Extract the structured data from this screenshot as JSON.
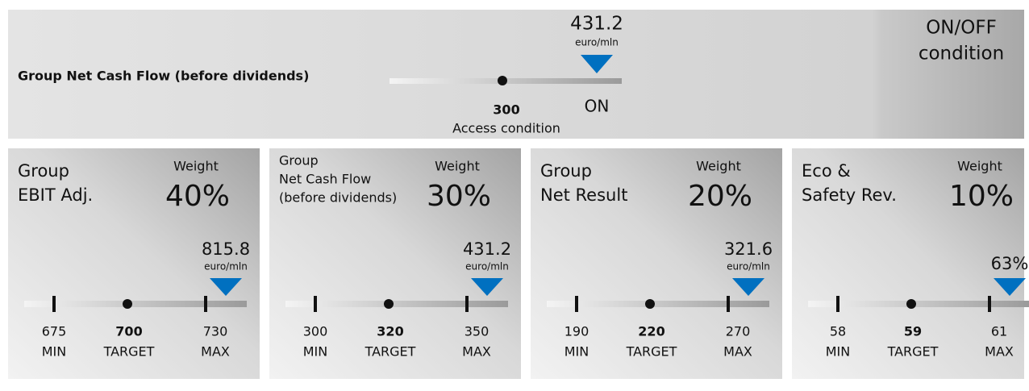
{
  "condition": {
    "label": "Group Net Cash Flow (before dividends)",
    "value": "431.2",
    "unit": "euro/mln",
    "threshold": "300",
    "threshold_label": "Access condition",
    "status": "ON",
    "title_lines": [
      "ON/OFF",
      "condition"
    ]
  },
  "kpis": [
    {
      "title_lines": [
        "Group",
        "EBIT Adj."
      ],
      "weight_label": "Weight",
      "weight": "40%",
      "value": "815.8",
      "unit": "euro/mln",
      "min": "675",
      "target": "700",
      "max": "730",
      "min_label": "MIN",
      "target_label": "TARGET",
      "max_label": "MAX"
    },
    {
      "title_lines": [
        "Group",
        "Net Cash Flow",
        "(before dividends)"
      ],
      "weight_label": "Weight",
      "weight": "30%",
      "value": "431.2",
      "unit": "euro/mln",
      "min": "300",
      "target": "320",
      "max": "350",
      "min_label": "MIN",
      "target_label": "TARGET",
      "max_label": "MAX"
    },
    {
      "title_lines": [
        "Group",
        "Net Result"
      ],
      "weight_label": "Weight",
      "weight": "20%",
      "value": "321.6",
      "unit": "euro/mln",
      "min": "190",
      "target": "220",
      "max": "270",
      "min_label": "MIN",
      "target_label": "TARGET",
      "max_label": "MAX"
    },
    {
      "title_lines": [
        "Eco &",
        "Safety Rev."
      ],
      "weight_label": "Weight",
      "weight": "10%",
      "weight_color": "#4e7a2e",
      "value": "63%",
      "min": "58",
      "target": "59",
      "max": "61",
      "min_label": "MIN",
      "target_label": "TARGET",
      "max_label": "MAX"
    }
  ]
}
